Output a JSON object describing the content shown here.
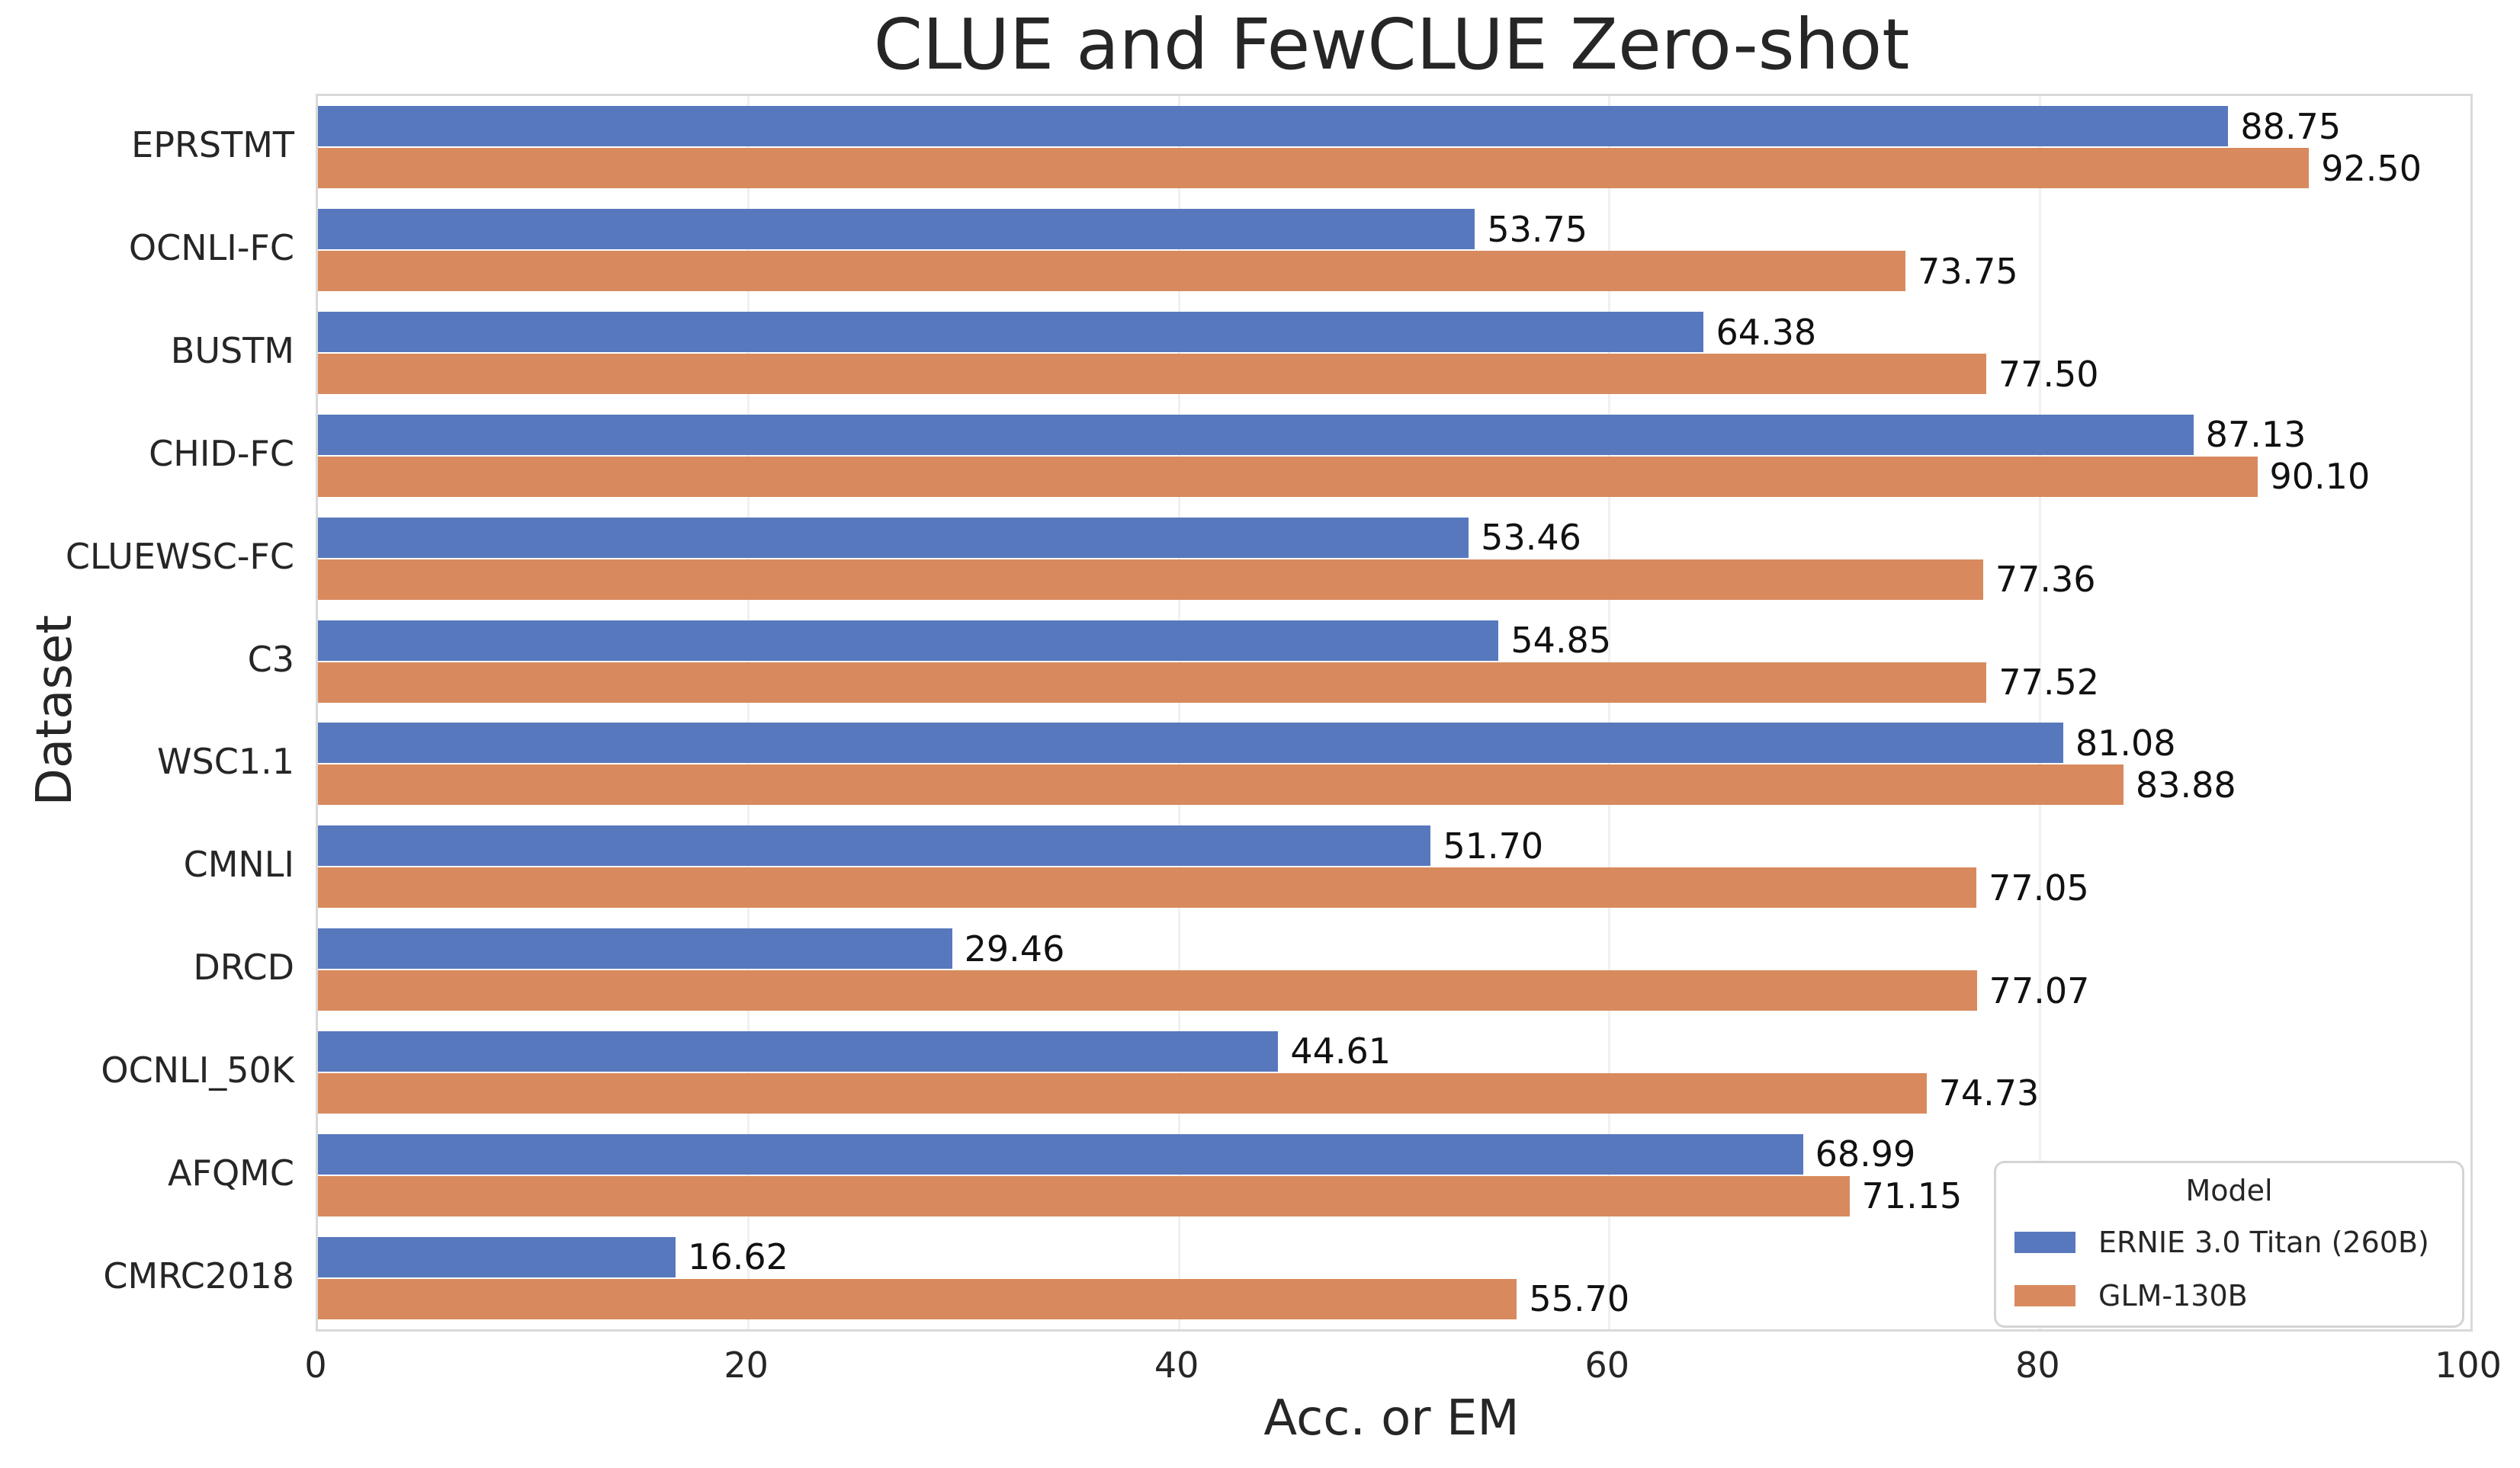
{
  "chart_data": {
    "type": "bar",
    "orientation": "horizontal",
    "title": "CLUE and FewCLUE Zero-shot",
    "xlabel": "Acc. or EM",
    "ylabel": "Dataset",
    "categories": [
      "EPRSTMT",
      "OCNLI-FC",
      "BUSTM",
      "CHID-FC",
      "CLUEWSC-FC",
      "C3",
      "WSC1.1",
      "CMNLI",
      "DRCD",
      "OCNLI_50K",
      "AFQMC",
      "CMRC2018"
    ],
    "series": [
      {
        "name": "ERNIE 3.0 Titan (260B)",
        "color": "#5878BE",
        "values": [
          88.75,
          53.75,
          64.38,
          87.13,
          53.46,
          54.85,
          81.08,
          51.7,
          29.46,
          44.61,
          68.99,
          16.62
        ]
      },
      {
        "name": "GLM-130B",
        "color": "#D88A5E",
        "values": [
          92.5,
          73.75,
          77.5,
          90.1,
          77.36,
          77.52,
          83.88,
          77.05,
          77.07,
          74.73,
          71.15,
          55.7
        ]
      }
    ],
    "xlim": [
      0,
      100
    ],
    "xticks": [
      0,
      20,
      40,
      60,
      80,
      100
    ],
    "grid": true,
    "value_labels": true,
    "value_label_decimals": 2,
    "legend": {
      "title": "Model",
      "position": "lower right"
    }
  },
  "style_colors": {
    "text": "#262626",
    "value_label_text": "#111111",
    "spine": "#d9d9d9",
    "grid": "#f0f0f0",
    "background": "#ffffff"
  }
}
